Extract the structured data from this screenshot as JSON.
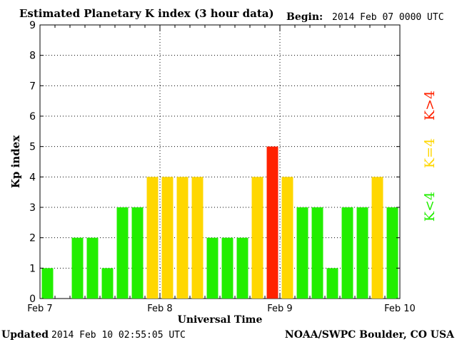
{
  "header": {
    "title": "Estimated Planetary K index (3 hour data)",
    "begin_label": "Begin:",
    "begin_value": "2014 Feb 07 0000 UTC"
  },
  "footer": {
    "updated_label": "Updated",
    "updated_value": "2014 Feb 10 02:55:05 UTC",
    "source": "NOAA/SWPC Boulder, CO USA"
  },
  "legend": {
    "low": "K<4",
    "mid": "K=4",
    "high": "K>4"
  },
  "colors": {
    "low": "#22ee00",
    "mid": "#ffd700",
    "high": "#ff2200"
  },
  "chart_data": {
    "type": "bar",
    "title": "Estimated Planetary K index (3 hour data)",
    "xlabel": "Universal Time",
    "ylabel": "Kp index",
    "ylim": [
      0,
      9
    ],
    "yticks": [
      0,
      1,
      2,
      3,
      4,
      5,
      6,
      7,
      8,
      9
    ],
    "xticks": [
      "Feb 7",
      "Feb 8",
      "Feb 9",
      "Feb 10"
    ],
    "grid": true,
    "legend_position": "right",
    "interval_hours": 3,
    "values": [
      1,
      0,
      2,
      2,
      1,
      3,
      3,
      4,
      4,
      4,
      4,
      2,
      2,
      2,
      4,
      5,
      4,
      3,
      3,
      1,
      3,
      3,
      4,
      3
    ]
  }
}
